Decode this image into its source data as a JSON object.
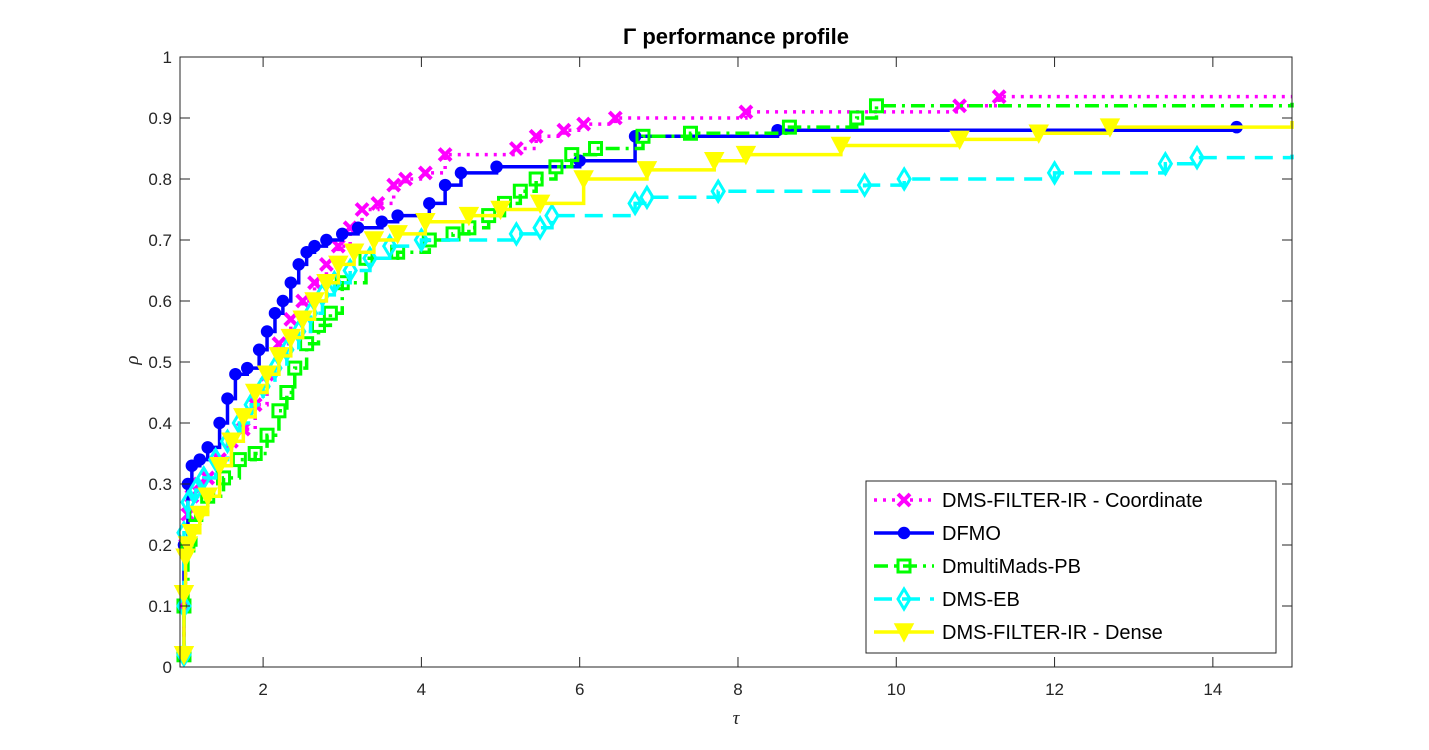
{
  "chart_data": {
    "type": "line",
    "title": "Γ performance profile",
    "xlabel": "τ",
    "ylabel": "ρ",
    "xlim": [
      0.95,
      15
    ],
    "ylim": [
      0,
      1
    ],
    "xticks": [
      2,
      4,
      6,
      8,
      10,
      12,
      14
    ],
    "yticks": [
      0,
      0.1,
      0.2,
      0.3,
      0.4,
      0.5,
      0.6,
      0.7,
      0.8,
      0.9,
      1
    ],
    "ytick_labels": [
      "0",
      "0.1",
      "0.2",
      "0.3",
      "0.4",
      "0.5",
      "0.6",
      "0.7",
      "0.8",
      "0.9",
      "1"
    ],
    "grid": false,
    "legend_position": "bottom-right",
    "series": [
      {
        "name": "DMS-FILTER-IR - Coordinate",
        "color": "#ff00ff",
        "line_style": "dotted",
        "marker": "x",
        "x": [
          1.0,
          1.0,
          1.02,
          1.05,
          1.1,
          1.2,
          1.3,
          1.45,
          1.6,
          1.75,
          1.9,
          2.05,
          2.2,
          2.35,
          2.5,
          2.65,
          2.8,
          2.95,
          3.1,
          3.25,
          3.45,
          3.65,
          3.8,
          4.05,
          4.3,
          5.2,
          5.45,
          5.8,
          6.05,
          6.45,
          8.1,
          10.8,
          11.3,
          15.0
        ],
        "y": [
          0.02,
          0.1,
          0.2,
          0.25,
          0.28,
          0.3,
          0.31,
          0.34,
          0.37,
          0.39,
          0.43,
          0.48,
          0.53,
          0.57,
          0.6,
          0.63,
          0.66,
          0.69,
          0.72,
          0.75,
          0.76,
          0.79,
          0.8,
          0.81,
          0.84,
          0.85,
          0.87,
          0.88,
          0.89,
          0.9,
          0.91,
          0.92,
          0.935,
          0.935
        ]
      },
      {
        "name": "DFMO",
        "color": "#0000ff",
        "line_style": "solid",
        "marker": "circle",
        "x": [
          1.0,
          1.0,
          1.05,
          1.1,
          1.2,
          1.3,
          1.45,
          1.55,
          1.65,
          1.8,
          1.95,
          2.05,
          2.15,
          2.25,
          2.35,
          2.45,
          2.55,
          2.65,
          2.8,
          3.0,
          3.2,
          3.5,
          3.7,
          4.1,
          4.3,
          4.5,
          4.95,
          6.0,
          6.7,
          8.5,
          14.3
        ],
        "y": [
          0.02,
          0.2,
          0.3,
          0.33,
          0.34,
          0.36,
          0.4,
          0.44,
          0.48,
          0.49,
          0.52,
          0.55,
          0.58,
          0.6,
          0.63,
          0.66,
          0.68,
          0.69,
          0.7,
          0.71,
          0.72,
          0.73,
          0.74,
          0.76,
          0.79,
          0.81,
          0.82,
          0.83,
          0.87,
          0.88,
          0.885
        ]
      },
      {
        "name": "DmultiMads-PB",
        "color": "#00ff00",
        "line_style": "dashdot",
        "marker": "square",
        "x": [
          1.0,
          1.0,
          1.05,
          1.15,
          1.3,
          1.5,
          1.7,
          1.9,
          2.05,
          2.2,
          2.3,
          2.4,
          2.55,
          2.7,
          2.85,
          3.0,
          3.3,
          3.7,
          4.1,
          4.4,
          4.6,
          4.85,
          5.05,
          5.25,
          5.45,
          5.7,
          5.9,
          6.2,
          6.8,
          7.4,
          8.65,
          9.5,
          9.75,
          15.0
        ],
        "y": [
          0.02,
          0.1,
          0.2,
          0.25,
          0.28,
          0.31,
          0.34,
          0.35,
          0.38,
          0.42,
          0.45,
          0.49,
          0.53,
          0.56,
          0.58,
          0.63,
          0.67,
          0.68,
          0.7,
          0.71,
          0.72,
          0.74,
          0.76,
          0.78,
          0.8,
          0.82,
          0.84,
          0.85,
          0.87,
          0.875,
          0.885,
          0.9,
          0.92,
          0.925
        ]
      },
      {
        "name": "DMS-EB",
        "color": "#00ffff",
        "line_style": "dashed",
        "marker": "diamond",
        "x": [
          1.0,
          1.0,
          1.0,
          1.05,
          1.15,
          1.25,
          1.4,
          1.55,
          1.7,
          1.85,
          2.0,
          2.15,
          2.3,
          2.45,
          2.6,
          2.75,
          2.9,
          3.1,
          3.35,
          3.6,
          4.0,
          5.2,
          5.5,
          5.65,
          6.7,
          6.85,
          7.75,
          9.6,
          10.1,
          12.0,
          13.4,
          13.8,
          15.0
        ],
        "y": [
          0.02,
          0.1,
          0.22,
          0.27,
          0.29,
          0.31,
          0.34,
          0.37,
          0.4,
          0.43,
          0.46,
          0.49,
          0.52,
          0.55,
          0.58,
          0.61,
          0.63,
          0.65,
          0.67,
          0.69,
          0.7,
          0.71,
          0.72,
          0.74,
          0.76,
          0.77,
          0.78,
          0.79,
          0.8,
          0.81,
          0.825,
          0.835,
          0.84
        ]
      },
      {
        "name": "DMS-FILTER-IR - Dense",
        "color": "#ffff00",
        "line_style": "solid",
        "marker": "triangle-down",
        "x": [
          1.0,
          1.0,
          1.02,
          1.05,
          1.1,
          1.2,
          1.3,
          1.45,
          1.6,
          1.75,
          1.9,
          2.05,
          2.2,
          2.35,
          2.5,
          2.65,
          2.8,
          2.95,
          3.15,
          3.4,
          3.7,
          4.05,
          4.6,
          5.0,
          5.5,
          6.05,
          6.85,
          7.7,
          8.1,
          9.3,
          10.8,
          11.8,
          12.7,
          15.0
        ],
        "y": [
          0.02,
          0.12,
          0.18,
          0.2,
          0.22,
          0.25,
          0.28,
          0.33,
          0.37,
          0.41,
          0.45,
          0.48,
          0.51,
          0.54,
          0.57,
          0.6,
          0.63,
          0.66,
          0.68,
          0.7,
          0.71,
          0.73,
          0.74,
          0.75,
          0.76,
          0.8,
          0.815,
          0.83,
          0.84,
          0.855,
          0.865,
          0.875,
          0.885,
          0.895
        ]
      }
    ]
  }
}
